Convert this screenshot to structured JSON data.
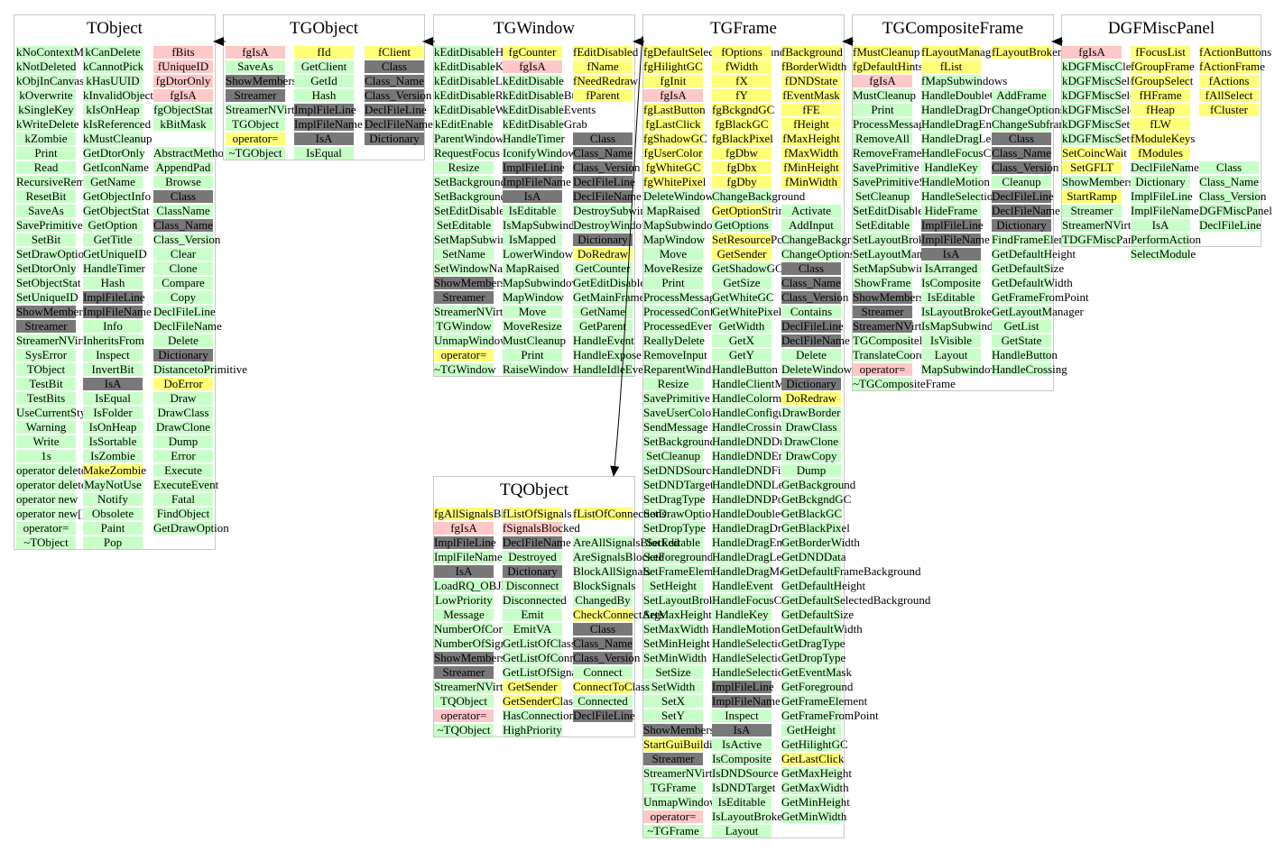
{
  "colors": {
    "green": "#c8ffc8",
    "yellow": "#ffff78",
    "pink": "#ffc8c8",
    "dark": "#787878",
    "border": "#c8c8c8",
    "arrow": "#000000"
  },
  "classes": [
    {
      "id": "TObject",
      "title": "TObject",
      "columns": [
        [
          "kNoContextMenu|g",
          "kNotDeleted|g",
          "kObjInCanvas|g",
          "kOverwrite|g",
          "kSingleKey|g",
          "kWriteDelete|g",
          "kZombie|g",
          "Print|g",
          "Read|g",
          "RecursiveRemove|g",
          "ResetBit|g",
          "SaveAs|g",
          "SavePrimitive|g",
          "SetBit|g",
          "SetDrawOption|g",
          "SetDtorOnly|g",
          "SetObjectStat|g",
          "SetUniqueID|g",
          "ShowMembers|d",
          "Streamer|d",
          "StreamerNVirtual|g",
          "SysError|g",
          "TObject|g",
          "TestBit|g",
          "TestBits|g",
          "UseCurrentStyle|g",
          "Warning|g",
          "Write|g",
          "1s|g",
          "operator delete|g",
          "operator delete[]|g",
          "operator new|g",
          "operator new[]|g",
          "operator=|g",
          "~TObject|g"
        ],
        [
          "kCanDelete|g",
          "kCannotPick|g",
          "kHasUUID|g",
          "kInvalidObject|g",
          "kIsOnHeap|g",
          "kIsReferenced|g",
          "kMustCleanup|g",
          "GetDtorOnly|g",
          "GetIconName|g",
          "GetName|g",
          "GetObjectInfo|g",
          "GetObjectStat|g",
          "GetOption|g",
          "GetTitle|g",
          "GetUniqueID|g",
          "HandleTimer|g",
          "Hash|g",
          "ImplFileLine|d",
          "ImplFileName|d",
          "Info|g",
          "InheritsFrom|g",
          "Inspect|g",
          "InvertBit|g",
          "IsA|d",
          "IsEqual|g",
          "IsFolder|g",
          "IsOnHeap|g",
          "IsSortable|g",
          "IsZombie|g",
          "MakeZombie|y",
          "MayNotUse|g",
          "Notify|g",
          "Obsolete|g",
          "Paint|g",
          "Pop|g"
        ],
        [
          "fBits|p",
          "fUniqueID|p",
          "fgDtorOnly|p",
          "fgIsA|p",
          "fgObjectStat|g",
          "kBitMask|g",
          "|w",
          "AbstractMethod|g",
          "AppendPad|g",
          "Browse|g",
          "Class|d",
          "ClassName|g",
          "Class_Name|d",
          "Class_Version|g",
          "Clear|g",
          "Clone|g",
          "Compare|g",
          "Copy|g",
          "DeclFileLine|g",
          "DeclFileName|g",
          "Delete|g",
          "Dictionary|d",
          "DistancetoPrimitive|g",
          "DoError|y",
          "Draw|g",
          "DrawClass|g",
          "DrawClone|g",
          "Dump|g",
          "Error|g",
          "Execute|g",
          "ExecuteEvent|g",
          "Fatal|g",
          "FindObject|g",
          "GetDrawOption|g"
        ]
      ]
    },
    {
      "id": "TGObject",
      "title": "TGObject",
      "columns": [
        [
          "fgIsA|p",
          "SaveAs|g",
          "ShowMembers|d",
          "Streamer|d",
          "StreamerNVirtual|g",
          "TGObject|g",
          "operator=|y",
          "~TGObject|g"
        ],
        [
          "fId|y",
          "GetClient|g",
          "GetId|g",
          "Hash|g",
          "ImplFileLine|d",
          "ImplFileName|d",
          "IsA|d",
          "IsEqual|g"
        ],
        [
          "fClient|y",
          "Class|d",
          "Class_Name|d",
          "Class_Version|d",
          "DeclFileLine|d",
          "DeclFileName|d",
          "Dictionary|d"
        ]
      ]
    },
    {
      "id": "TGWindow",
      "title": "TGWindow",
      "columns": [
        [
          "kEditDisableHeight|g",
          "kEditDisableKeyEnable|g",
          "kEditDisableLayout|g",
          "kEditDisableResize|g",
          "kEditDisableWidth|g",
          "kEditEnable|g",
          "ParentWindow|g",
          "RequestFocus|g",
          "Resize|g",
          "SetBackgroundColor|g",
          "SetBackgroundPixmap|g",
          "SetEditDisabled|g",
          "SetEditable|g",
          "SetMapSubwindows|g",
          "SetName|g",
          "SetWindowName|g",
          "ShowMembers|d",
          "Streamer|d",
          "StreamerNVirtual|g",
          "TGWindow|g",
          "UnmapWindow|g",
          "operator=|y",
          "~TGWindow|g"
        ],
        [
          "fgCounter|y",
          "fgIsA|p",
          "kEditDisable|g",
          "kEditDisableBtnEnable|g",
          "kEditDisableEvents|g",
          "kEditDisableGrab|g",
          "HandleTimer|g",
          "IconifyWindow|g",
          "ImplFileLine|d",
          "ImplFileName|d",
          "IsA|d",
          "IsEditable|g",
          "IsMapSubwindows|g",
          "IsMapped|g",
          "LowerWindow|g",
          "MapRaised|g",
          "MapSubwindows|g",
          "MapWindow|g",
          "Move|g",
          "MoveResize|g",
          "MustCleanup|g",
          "Print|g",
          "RaiseWindow|g"
        ],
        [
          "fEditDisabled|y",
          "fName|y",
          "fNeedRedraw|y",
          "fParent|y",
          "|w",
          "|w",
          "Class|d",
          "Class_Name|d",
          "Class_Version|d",
          "DeclFileLine|d",
          "DeclFileName|d",
          "DestroySubwindows|g",
          "DestroyWindow|g",
          "Dictionary|d",
          "DoRedraw|y",
          "GetCounter|g",
          "GetEditDisabled|g",
          "GetMainFrame|g",
          "GetName|g",
          "GetParent|g",
          "HandleEvent|g",
          "HandleExpose|g",
          "HandleIdleEvent|g"
        ]
      ]
    },
    {
      "id": "TGFrame",
      "title": "TGFrame",
      "columns": [
        [
          "fgDefaultSelectedBackground|y",
          "fgHilightGC|y",
          "fgInit|y",
          "fgIsA|p",
          "fgLastButton|y",
          "fgLastClick|y",
          "fgShadowGC|y",
          "fgUserColor|y",
          "fgWhiteGC|y",
          "fgWhitePixel|y",
          "DeleteWindowCalled|g",
          "MapRaised|g",
          "MapSubwindows|g",
          "MapWindow|g",
          "Move|g",
          "MoveResize|g",
          "Print|g",
          "ProcessMessage|g",
          "ProcessedConfigure|g",
          "ProcessedEvent|g",
          "ReallyDelete|g",
          "RemoveInput|g",
          "ReparentWindow|g",
          "Resize|g",
          "SavePrimitive|g",
          "SaveUserColor|g",
          "SendMessage|g",
          "SetBackgroundColor|g",
          "SetCleanup|g",
          "SetDNDSource|g",
          "SetDNDTarget|g",
          "SetDragType|g",
          "SetDrawOption|g",
          "SetDropType|g",
          "SetEditable|g",
          "SetForegroundColor|g",
          "SetFrameElement|g",
          "SetHeight|g",
          "SetLayoutBroken|g",
          "SetMaxHeight|g",
          "SetMaxWidth|g",
          "SetMinHeight|g",
          "SetMinWidth|g",
          "SetSize|g",
          "SetWidth|g",
          "SetX|g",
          "SetY|g",
          "ShowMembers|d",
          "StartGuiBuilding|y",
          "Streamer|d",
          "StreamerNVirtual|g",
          "TGFrame|g",
          "UnmapWindow|g",
          "operator=|p",
          "~TGFrame|g"
        ],
        [
          "fOptions|y",
          "fWidth|y",
          "fX|y",
          "fY|y",
          "fgBckgndGC|y",
          "fgBlackGC|y",
          "fgBlackPixel|y",
          "fgDbw|y",
          "fgDbx|y",
          "fgDby|y",
          "ChangeBackground|g",
          "GetOptionString|y",
          "GetOptions|g",
          "SetResourcePool|y",
          "GetSender|y",
          "GetShadowGC|g",
          "GetSize|g",
          "GetWhiteGC|g",
          "GetWhitePixel|g",
          "GetWidth|g",
          "GetX|g",
          "GetY|g",
          "HandleButton|g",
          "HandleClientMessage|g",
          "HandleColormapChange|g",
          "HandleConfigureNotify|g",
          "HandleCrossing|g",
          "HandleDNDDrop|g",
          "HandleDNDEnter|g",
          "HandleDNDFinished|g",
          "HandleDNDLeave|g",
          "HandleDNDPosition|g",
          "HandleDoubleClick|g",
          "HandleDragDrop|g",
          "HandleDragEnter|g",
          "HandleDragLeave|g",
          "HandleDragMotion|g",
          "HandleEvent|g",
          "HandleFocusChange|g",
          "HandleKey|g",
          "HandleMotion|g",
          "HandleSelection|g",
          "HandleSelectionClear|g",
          "HandleSelectionRequest|g",
          "ImplFileLine|d",
          "ImplFileName|d",
          "Inspect|g",
          "IsA|d",
          "IsActive|g",
          "IsComposite|g",
          "IsDNDSource|g",
          "IsDNDTarget|g",
          "IsEditable|g",
          "IsLayoutBroken|g",
          "Layout|g"
        ],
        [
          "fBackground|y",
          "fBorderWidth|y",
          "fDNDState|y",
          "fEventMask|y",
          "fFE|y",
          "fHeight|y",
          "fMaxHeight|y",
          "fMaxWidth|y",
          "fMinHeight|y",
          "fMinWidth|y",
          "|w",
          "Activate|g",
          "AddInput|g",
          "ChangeBackground|g",
          "ChangeOptions|g",
          "Class|d",
          "Class_Name|d",
          "Class_Version|d",
          "Contains|g",
          "DeclFileLine|d",
          "DeclFileName|d",
          "Delete|g",
          "DeleteWindow|g",
          "Dictionary|d",
          "DoRedraw|y",
          "DrawBorder|g",
          "DrawClass|g",
          "DrawClone|g",
          "DrawCopy|g",
          "Dump|g",
          "GetBackground|g",
          "GetBckgndGC|g",
          "GetBlackGC|g",
          "GetBlackPixel|g",
          "GetBorderWidth|g",
          "GetDNDData|g",
          "GetDefaultFrameBackground|g",
          "GetDefaultHeight|g",
          "GetDefaultSelectedBackground|g",
          "GetDefaultSize|g",
          "GetDefaultWidth|g",
          "GetDragType|g",
          "GetDropType|g",
          "GetEventMask|g",
          "GetForeground|g",
          "GetFrameElement|g",
          "GetFrameFromPoint|g",
          "GetHeight|g",
          "GetHilightGC|g",
          "GetLastClick|y",
          "GetMaxHeight|g",
          "GetMaxWidth|g",
          "GetMinHeight|g",
          "GetMinWidth|g"
        ]
      ]
    },
    {
      "id": "TGCompositeFrame",
      "title": "TGCompositeFrame",
      "columns": [
        [
          "fMustCleanup|y",
          "fgDefaultHints|y",
          "fgIsA|p",
          "MustCleanup|g",
          "Print|g",
          "ProcessMessage|g",
          "RemoveAll|g",
          "RemoveFrame|g",
          "SavePrimitive|g",
          "SavePrimitiveSubframes|g",
          "SetCleanup|g",
          "SetEditDisabled|g",
          "SetEditable|g",
          "SetLayoutBroken|g",
          "SetLayoutManager|g",
          "SetMapSubwindows|g",
          "ShowFrame|g",
          "ShowMembers|d",
          "Streamer|d",
          "StreamerNVirtual|d",
          "TGCompositeFrame|g",
          "TranslateCoordinates|g",
          "operator=|p",
          "~TGCompositeFrame|g"
        ],
        [
          "fLayoutManager|y",
          "fList|y",
          "fMapSubwindows|g",
          "HandleDoubleClick|g",
          "HandleDragDrop|g",
          "HandleDragEnter|g",
          "HandleDragLeave|g",
          "HandleFocusChange|g",
          "HandleKey|g",
          "HandleMotion|g",
          "HandleSelection|g",
          "HideFrame|g",
          "ImplFileLine|d",
          "ImplFileName|d",
          "IsA|d",
          "IsArranged|g",
          "IsComposite|g",
          "IsEditable|g",
          "IsLayoutBroken|g",
          "IsMapSubwindows|g",
          "IsVisible|g",
          "Layout|g",
          "MapSubwindows|g"
        ],
        [
          "fLayoutBroken|y",
          "|w",
          "|w",
          "AddFrame|g",
          "ChangeOptions|g",
          "ChangeSubframesBackground|g",
          "Class|d",
          "Class_Name|d",
          "Class_Version|d",
          "Cleanup|g",
          "DeclFileLine|d",
          "DeclFileName|d",
          "Dictionary|d",
          "FindFrameElement|g",
          "GetDefaultHeight|g",
          "GetDefaultSize|g",
          "GetDefaultWidth|g",
          "GetFrameFromPoint|g",
          "GetLayoutManager|g",
          "GetList|g",
          "GetState|g",
          "HandleButton|g",
          "HandleCrossing|g"
        ]
      ]
    },
    {
      "id": "DGFMiscPanel",
      "title": "DGFMiscPanel",
      "columns": [
        [
          "fgIsA|p",
          "kDGFMiscClearGFLT|g",
          "kDGFMiscSelectAll|g",
          "kDGFMiscSelectColumn|g",
          "kDGFMiscSelectNone|g",
          "kDGFMiscSetCoincWin|g",
          "kDGFMiscSetGFLT|g",
          "SetCoincWait|y",
          "SetGFLT|y",
          "ShowMembers|g",
          "StartRamp|y",
          "Streamer|g",
          "StreamerNVirtual|g",
          "TDGFMiscPanel|g"
        ],
        [
          "fFocusList|y",
          "fGroupFrame|y",
          "fGroupSelect|y",
          "fHFrame|y",
          "fHeap|y",
          "fLW|y",
          "fModuleKeys|y",
          "fModules|y",
          "DeclFileName|g",
          "Dictionary|g",
          "ImplFileLine|g",
          "ImplFileName|g",
          "IsA|g",
          "PerformAction|g",
          "SelectModule|g"
        ],
        [
          "fActionButtons|y",
          "fActionFrame|y",
          "fActions|y",
          "fAllSelect|y",
          "fCluster|y",
          "|w",
          "|w",
          "|w",
          "Class|g",
          "Class_Name|g",
          "Class_Version|g",
          "DGFMiscPanel|g",
          "DeclFileLine|g"
        ]
      ]
    },
    {
      "id": "TQObject",
      "title": "TQObject",
      "columns": [
        [
          "fgAllSignalsBlocked|y",
          "fgIsA|p",
          "ImplFileLine|d",
          "ImplFileName|g",
          "IsA|d",
          "LoadRQ_OBJECT|g",
          "LowPriority|g",
          "Message|g",
          "NumberOfConnections|g",
          "NumberOfSignals|g",
          "ShowMembers|d",
          "Streamer|d",
          "StreamerNVirtual|g",
          "TQObject|g",
          "operator=|p",
          "~TQObject|g"
        ],
        [
          "fListOfSignals|y",
          "fSignalsBlocked|p",
          "DeclFileName|d",
          "Destroyed|g",
          "Dictionary|d",
          "Disconnect|g",
          "Disconnected|g",
          "Emit|g",
          "EmitVA|g",
          "GetListOfClassSignals|g",
          "GetListOfConnections|g",
          "GetListOfSignals|g",
          "GetSender|y",
          "GetSenderClassName|y",
          "HasConnection|g",
          "HighPriority|g"
        ],
        [
          "fListOfConnections|y",
          "|w",
          "AreAllSignalsBlocked|g",
          "AreSignalsBlocked|g",
          "BlockAllSignals|g",
          "BlockSignals|g",
          "ChangedBy|g",
          "CheckConnectArgs|y",
          "Class|d",
          "Class_Name|d",
          "Class_Version|d",
          "Connect|g",
          "ConnectToClass|y",
          "Connected|g",
          "DeclFileLine|d"
        ]
      ]
    }
  ]
}
